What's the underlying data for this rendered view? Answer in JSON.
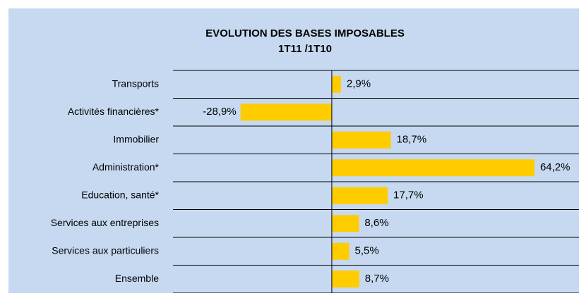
{
  "chart_data": {
    "type": "bar",
    "orientation": "horizontal",
    "title": "EVOLUTION DES BASES IMPOSABLES",
    "subtitle": "1T11 /1T10",
    "categories": [
      "Transports",
      "Activités financières*",
      "Immobilier",
      "Administration*",
      "Education, santé*",
      "Services aux entreprises",
      "Services aux particuliers",
      "Ensemble"
    ],
    "values": [
      2.9,
      -28.9,
      18.7,
      64.2,
      17.7,
      8.6,
      5.5,
      8.7
    ],
    "value_labels": [
      "2,9%",
      "-28,9%",
      "18,7%",
      "64,2%",
      "17,7%",
      "8,6%",
      "5,5%",
      "8,7%"
    ],
    "color": "#ffcc00",
    "xlim": [
      -50.3,
      78.3
    ]
  }
}
